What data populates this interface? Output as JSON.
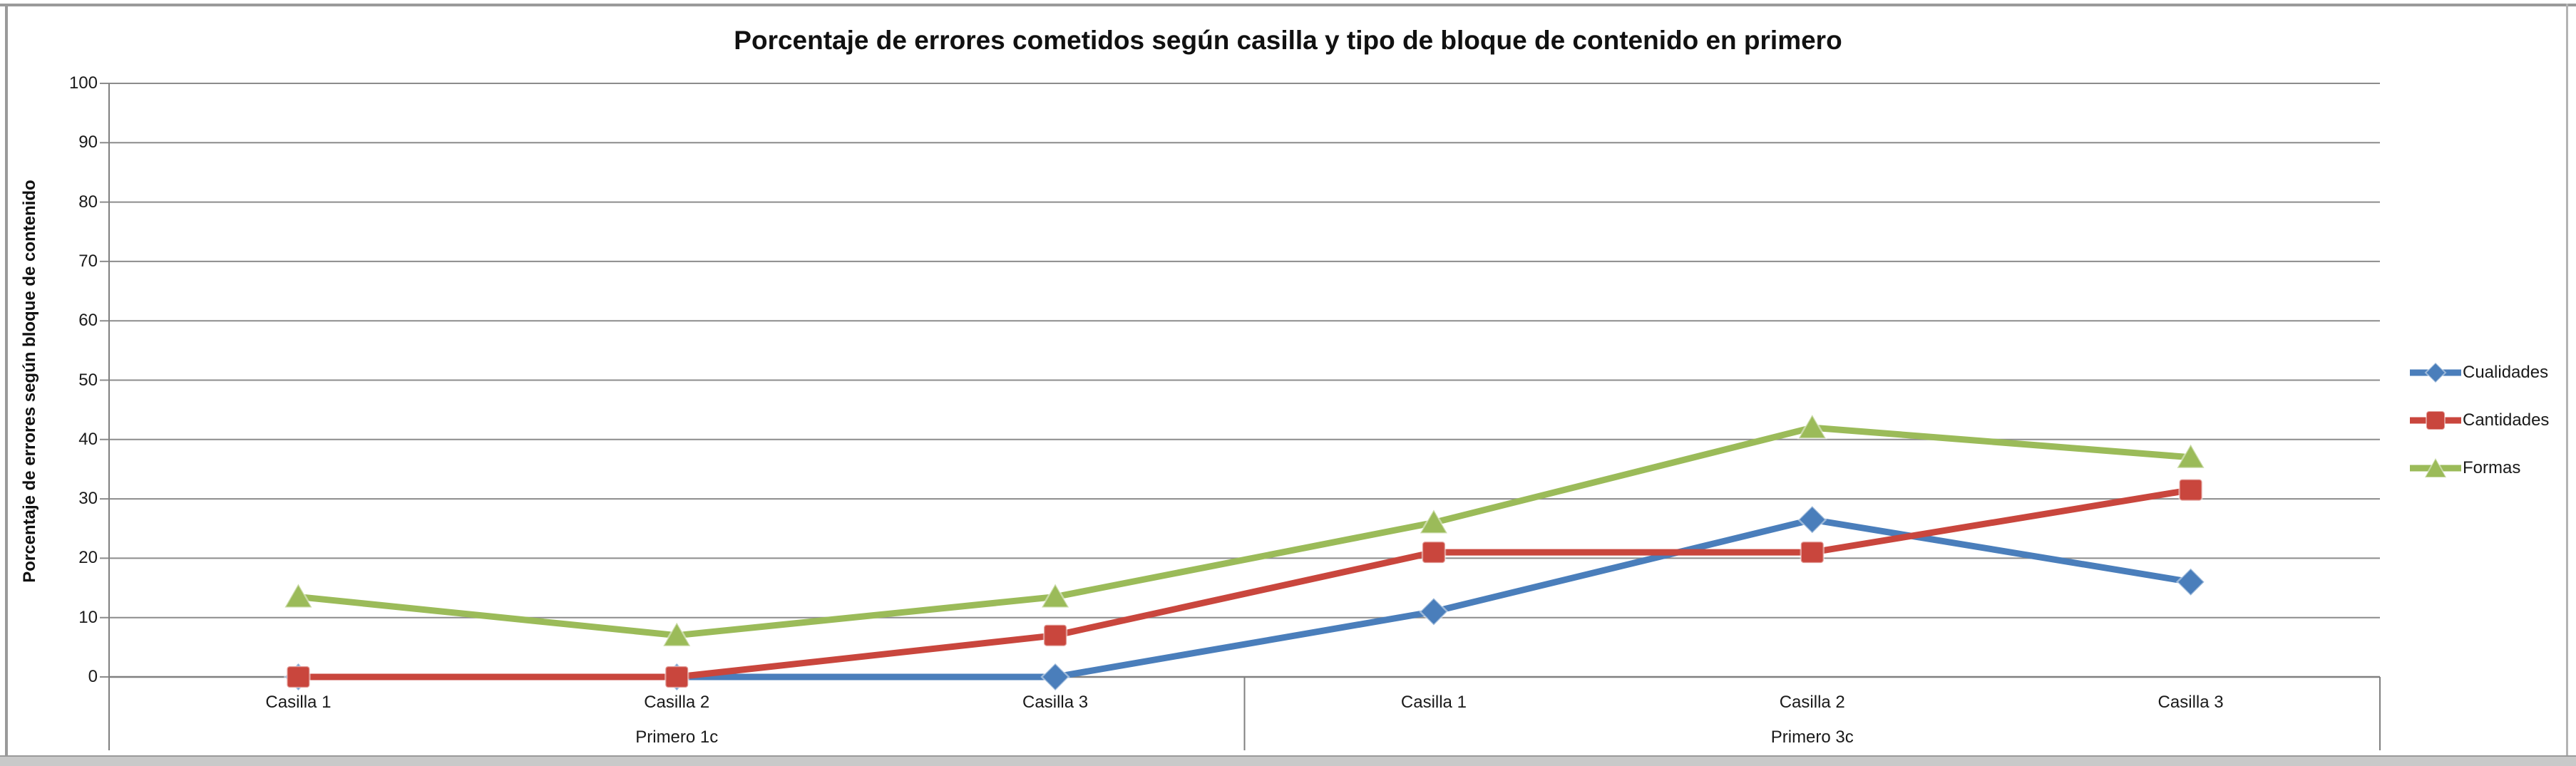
{
  "frame": {
    "border_color": "#9a9a9a",
    "footer_strip_color": "#c9c9c9",
    "background": "#ffffff"
  },
  "chart_data": {
    "type": "line",
    "title": "Porcentaje de errores cometidos según casilla y tipo de bloque de contenido en primero",
    "ylabel": "Porcentaje de errores según bloque de contenido",
    "xlabel": "",
    "ylim": [
      0,
      100
    ],
    "ytick_step": 10,
    "yticks": [
      0,
      10,
      20,
      30,
      40,
      50,
      60,
      70,
      80,
      90,
      100
    ],
    "grid": true,
    "legend_position": "right",
    "categories": [
      "Casilla 1",
      "Casilla 2",
      "Casilla 3",
      "Casilla 1",
      "Casilla 2",
      "Casilla 3"
    ],
    "groups": [
      {
        "label": "Primero 1c",
        "span": [
          0,
          2
        ]
      },
      {
        "label": "Primero 3c",
        "span": [
          3,
          5
        ]
      }
    ],
    "series": [
      {
        "name": "Cualidades",
        "color": "#4a7ebb",
        "marker": "diamond",
        "values": [
          0,
          0,
          0,
          11,
          26.5,
          16
        ]
      },
      {
        "name": "Cantidades",
        "color": "#c9463d",
        "marker": "square",
        "values": [
          0,
          0,
          7,
          21,
          21,
          31.5
        ]
      },
      {
        "name": "Formas",
        "color": "#9bbb59",
        "marker": "triangle",
        "values": [
          13.5,
          7,
          13.5,
          26,
          42,
          37
        ]
      }
    ],
    "axis_color": "#808080",
    "grid_color": "#8c8c8c",
    "text_color": "#1a1a1a"
  }
}
